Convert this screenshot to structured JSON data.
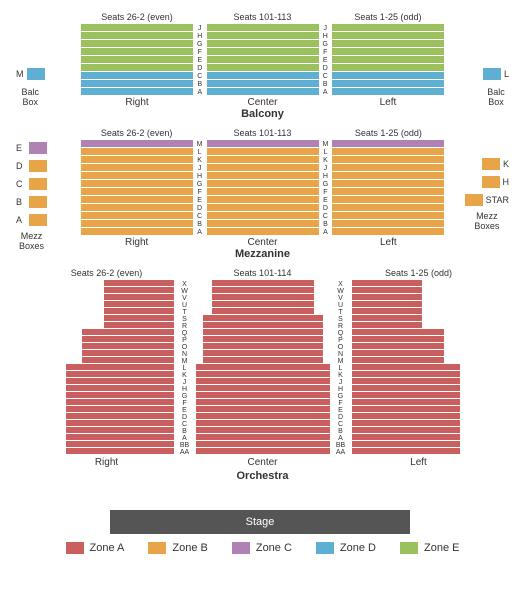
{
  "colors": {
    "zoneA": "#c9605f",
    "zoneB": "#e8a448",
    "zoneC": "#b081b3",
    "zoneD": "#5eafd1",
    "zoneE": "#9bc15e",
    "stage": "#555555"
  },
  "balcony": {
    "tier_label": "Balcony",
    "sections": {
      "right": {
        "header": "Seats 26-2 (even)",
        "label": "Right"
      },
      "center": {
        "header": "Seats 101-113",
        "label": "Center"
      },
      "left": {
        "header": "Seats 1-25 (odd)",
        "label": "Left"
      }
    },
    "row_letters": [
      "J",
      "H",
      "G",
      "F",
      "E",
      "D",
      "C",
      "B",
      "A"
    ],
    "rows_top_color": "zoneE",
    "rows_top_count": 6,
    "rows_bottom_color": "zoneD",
    "rows_bottom_count": 3,
    "side_boxes": {
      "left": {
        "letter": "M",
        "label": "Balc\nBox",
        "color": "zoneD"
      },
      "right": {
        "letter": "L",
        "label": "Balc\nBox",
        "color": "zoneD"
      }
    }
  },
  "mezzanine": {
    "tier_label": "Mezzanine",
    "sections": {
      "right": {
        "header": "Seats 26-2 (even)",
        "label": "Right"
      },
      "center": {
        "header": "Seats 101-113",
        "label": "Center"
      },
      "left": {
        "header": "Seats 1-25 (odd)",
        "label": "Left"
      }
    },
    "row_letters": [
      "M",
      "L",
      "K",
      "J",
      "H",
      "G",
      "F",
      "E",
      "D",
      "C",
      "B",
      "A"
    ],
    "rows_top_color": "zoneC",
    "rows_top_count": 1,
    "rows_bottom_color": "zoneB",
    "rows_bottom_count": 11,
    "side_boxes": {
      "left": [
        {
          "letter": "E",
          "color": "zoneC"
        },
        {
          "letter": "D",
          "color": "zoneB"
        },
        {
          "letter": "C",
          "color": "zoneB"
        },
        {
          "letter": "B",
          "color": "zoneB"
        },
        {
          "letter": "A",
          "color": "zoneB"
        }
      ],
      "left_label": "Mezz\nBoxes",
      "right": [
        {
          "letter": "K",
          "color": "zoneB"
        },
        {
          "letter": "H",
          "color": "zoneB"
        },
        {
          "letter": "STAR",
          "color": "zoneB"
        }
      ],
      "right_label": "Mezz\nBoxes"
    }
  },
  "orchestra": {
    "tier_label": "Orchestra",
    "sections": {
      "right": {
        "header": "Seats 26-2 (even)",
        "label": "Right"
      },
      "center": {
        "header": "Seats 101-114",
        "label": "Center"
      },
      "left": {
        "header": "Seats 1-25 (odd)",
        "label": "Left"
      }
    },
    "row_letters": [
      "X",
      "W",
      "V",
      "U",
      "T",
      "S",
      "R",
      "Q",
      "P",
      "O",
      "N",
      "M",
      "L",
      "K",
      "J",
      "H",
      "G",
      "F",
      "E",
      "D",
      "C",
      "B",
      "A",
      "BB",
      "AA"
    ],
    "color": "zoneA",
    "side_widths": [
      70,
      70,
      70,
      70,
      70,
      70,
      70,
      92,
      92,
      92,
      92,
      92,
      108,
      108,
      108,
      108,
      108,
      108,
      108,
      108,
      108,
      108,
      108,
      108,
      108
    ],
    "center_widths": [
      102,
      102,
      102,
      102,
      102,
      120,
      120,
      120,
      120,
      120,
      120,
      120,
      134,
      134,
      134,
      134,
      134,
      134,
      134,
      134,
      134,
      134,
      134,
      134,
      134
    ]
  },
  "stage_label": "Stage",
  "legend": {
    "items": [
      {
        "label": "Zone A",
        "color": "zoneA"
      },
      {
        "label": "Zone B",
        "color": "zoneB"
      },
      {
        "label": "Zone C",
        "color": "zoneC"
      },
      {
        "label": "Zone D",
        "color": "zoneD"
      },
      {
        "label": "Zone E",
        "color": "zoneE"
      }
    ]
  }
}
